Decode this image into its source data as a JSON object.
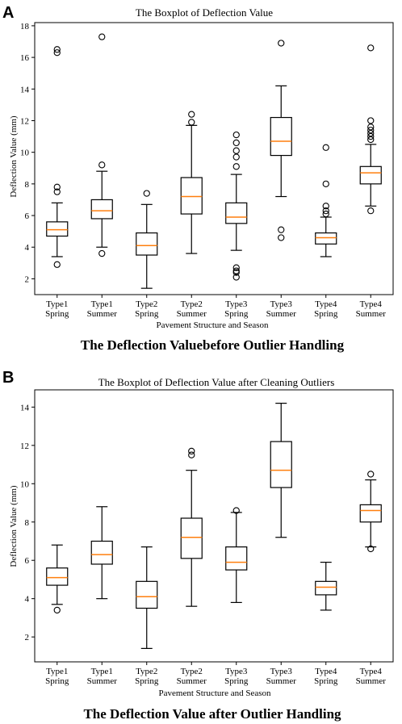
{
  "figure": {
    "panels": [
      {
        "letter": "A",
        "caption": "The Deflection Valuebefore Outlier Handling"
      },
      {
        "letter": "B",
        "caption": "The Deflection Value after Outlier Handling"
      }
    ]
  },
  "chart_data": [
    {
      "type": "box",
      "title": "The Boxplot of Deflection Value",
      "xlabel": "Pavement Structure and Season",
      "ylabel": "Deflection Value (mm)",
      "ylim": [
        1.0,
        18.2
      ],
      "yticks": [
        2,
        4,
        6,
        8,
        10,
        12,
        14,
        16,
        18
      ],
      "grid": false,
      "colors": {
        "median": "#ff7f0e",
        "box": "#000000"
      },
      "categories": [
        "Type1\nSpring",
        "Type1\nSummer",
        "Type2\nSpring",
        "Type2\nSummer",
        "Type3\nSpring",
        "Type3\nSummer",
        "Type4\nSpring",
        "Type4\nSummer"
      ],
      "boxes": [
        {
          "whislo": 3.4,
          "q1": 4.7,
          "med": 5.1,
          "q3": 5.6,
          "whishi": 6.8,
          "fliers": [
            2.9,
            7.5,
            7.8,
            16.3,
            16.5
          ]
        },
        {
          "whislo": 4.0,
          "q1": 5.8,
          "med": 6.3,
          "q3": 7.0,
          "whishi": 8.8,
          "fliers": [
            3.6,
            9.2,
            17.3
          ]
        },
        {
          "whislo": 1.4,
          "q1": 3.5,
          "med": 4.1,
          "q3": 4.9,
          "whishi": 6.7,
          "fliers": [
            7.4
          ]
        },
        {
          "whislo": 3.6,
          "q1": 6.1,
          "med": 7.2,
          "q3": 8.4,
          "whishi": 11.7,
          "fliers": [
            11.9,
            12.4
          ]
        },
        {
          "whislo": 3.8,
          "q1": 5.5,
          "med": 5.9,
          "q3": 6.8,
          "whishi": 8.6,
          "fliers": [
            2.1,
            2.4,
            2.5,
            2.7,
            9.1,
            9.7,
            10.1,
            10.6,
            11.1
          ]
        },
        {
          "whislo": 7.2,
          "q1": 9.8,
          "med": 10.7,
          "q3": 12.2,
          "whishi": 14.2,
          "fliers": [
            4.6,
            5.1,
            16.9
          ]
        },
        {
          "whislo": 3.4,
          "q1": 4.2,
          "med": 4.6,
          "q3": 4.9,
          "whishi": 5.9,
          "fliers": [
            6.1,
            6.3,
            6.6,
            8.0,
            10.3
          ]
        },
        {
          "whislo": 6.6,
          "q1": 8.0,
          "med": 8.7,
          "q3": 9.1,
          "whishi": 10.5,
          "fliers": [
            6.3,
            10.8,
            11.0,
            11.2,
            11.4,
            11.6,
            12.0,
            16.6
          ]
        }
      ]
    },
    {
      "type": "box",
      "title": "The Boxplot of Deflection Value after Cleaning Outliers",
      "xlabel": "Pavement Structure and Season",
      "ylabel": "Deflection Value (mm)",
      "ylim": [
        0.7,
        14.9
      ],
      "yticks": [
        2,
        4,
        6,
        8,
        10,
        12,
        14
      ],
      "grid": false,
      "colors": {
        "median": "#ff7f0e",
        "box": "#000000"
      },
      "categories": [
        "Type1\nSpring",
        "Type1\nSummer",
        "Type2\nSpring",
        "Type2\nSummer",
        "Type3\nSpring",
        "Type3\nSummer",
        "Type4\nSpring",
        "Type4\nSummer"
      ],
      "boxes": [
        {
          "whislo": 3.7,
          "q1": 4.7,
          "med": 5.1,
          "q3": 5.6,
          "whishi": 6.8,
          "fliers": [
            3.4
          ]
        },
        {
          "whislo": 4.0,
          "q1": 5.8,
          "med": 6.3,
          "q3": 7.0,
          "whishi": 8.8,
          "fliers": []
        },
        {
          "whislo": 1.4,
          "q1": 3.5,
          "med": 4.1,
          "q3": 4.9,
          "whishi": 6.7,
          "fliers": []
        },
        {
          "whislo": 3.6,
          "q1": 6.1,
          "med": 7.2,
          "q3": 8.2,
          "whishi": 10.7,
          "fliers": [
            11.5,
            11.7
          ]
        },
        {
          "whislo": 3.8,
          "q1": 5.5,
          "med": 5.9,
          "q3": 6.7,
          "whishi": 8.5,
          "fliers": [
            8.6
          ]
        },
        {
          "whislo": 7.2,
          "q1": 9.8,
          "med": 10.7,
          "q3": 12.2,
          "whishi": 14.2,
          "fliers": []
        },
        {
          "whislo": 3.4,
          "q1": 4.2,
          "med": 4.6,
          "q3": 4.9,
          "whishi": 5.9,
          "fliers": []
        },
        {
          "whislo": 6.7,
          "q1": 8.0,
          "med": 8.6,
          "q3": 8.9,
          "whishi": 10.2,
          "fliers": [
            6.6,
            10.5
          ]
        }
      ]
    }
  ]
}
